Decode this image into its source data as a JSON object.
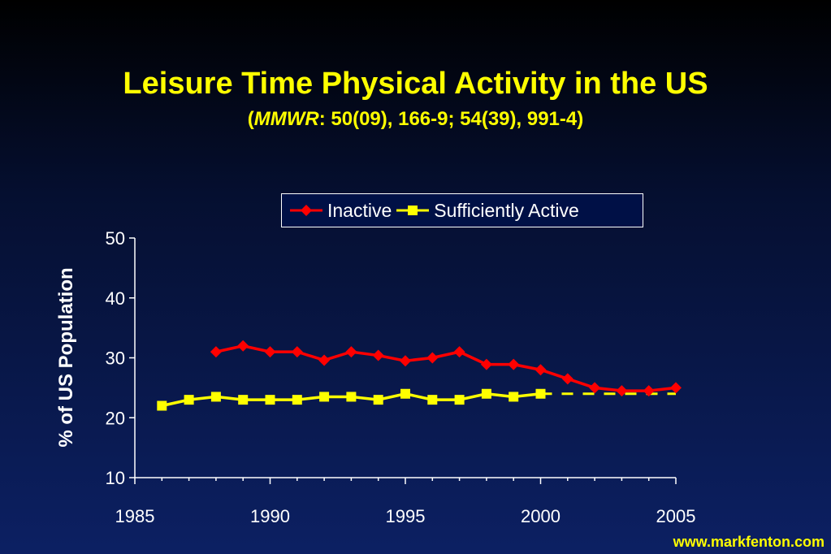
{
  "slide": {
    "title": "Leisure Time Physical Activity in the US",
    "subtitle_paren_open": "(",
    "subtitle_italic": "MMWR",
    "subtitle_rest": ": 50(09), 166-9; 54(39), 991-4)",
    "footer": "www.markfenton.com"
  },
  "chart_data": {
    "type": "line",
    "ylabel": "% of US Population",
    "xlabel": "",
    "xlim": [
      1985,
      2005
    ],
    "ylim": [
      10,
      50
    ],
    "x_ticks": [
      "1985",
      "1990",
      "1995",
      "2000",
      "2005"
    ],
    "y_ticks": [
      "10",
      "20",
      "30",
      "40",
      "50"
    ],
    "grid": false,
    "legend_position": "top-right",
    "series": [
      {
        "name": "Inactive",
        "color": "#ff0000",
        "marker": "diamond",
        "x": [
          1988,
          1989,
          1990,
          1991,
          1992,
          1993,
          1994,
          1995,
          1996,
          1997,
          1998,
          1999,
          2000,
          2001,
          2002,
          2003,
          2004,
          2005
        ],
        "y": [
          31,
          32,
          31,
          31,
          29.6,
          31,
          30.4,
          29.5,
          30,
          31,
          28.9,
          28.9,
          28,
          26.5,
          25,
          24.5,
          24.5,
          25
        ]
      },
      {
        "name": "Sufficiently Active",
        "color": "#ffff00",
        "marker": "square",
        "x": [
          1986,
          1987,
          1988,
          1989,
          1990,
          1991,
          1992,
          1993,
          1994,
          1995,
          1996,
          1997,
          1998,
          1999,
          2000
        ],
        "y": [
          22,
          23,
          23.5,
          23,
          23,
          23,
          23.5,
          23.5,
          23,
          24,
          23,
          23,
          24,
          23.5,
          24
        ]
      }
    ],
    "annotations": [
      {
        "type": "dashed-line",
        "series": "Sufficiently Active",
        "x": [
          2000,
          2005
        ],
        "y": [
          24,
          24
        ]
      }
    ]
  }
}
